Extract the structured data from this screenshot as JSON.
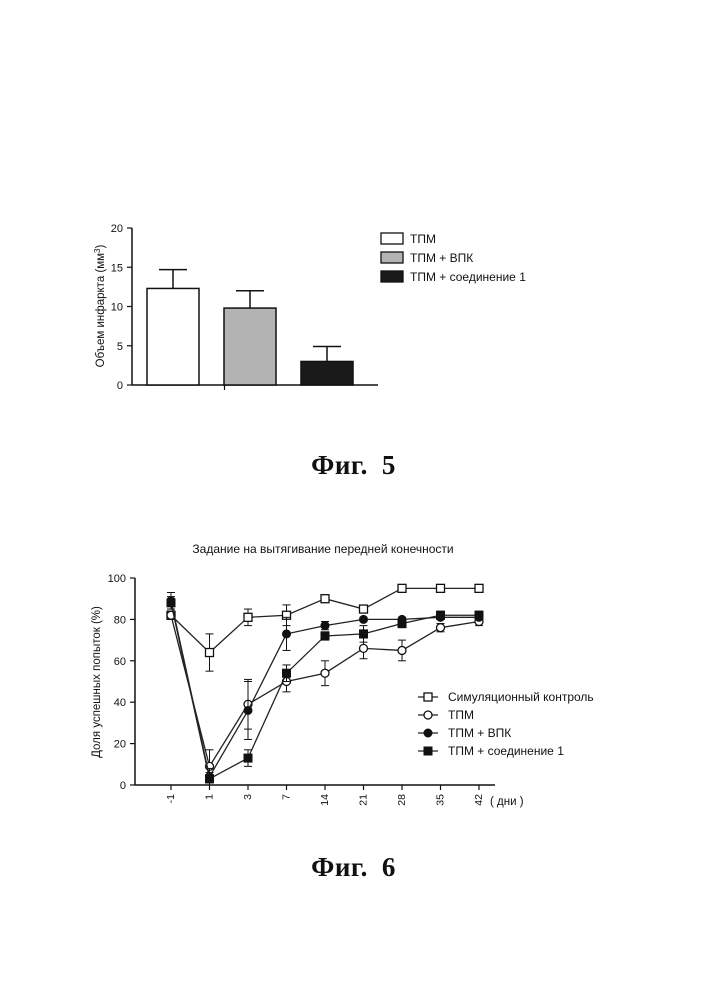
{
  "figures": [
    {
      "label": "Фиг.",
      "number": "5"
    },
    {
      "label": "Фиг.",
      "number": "6"
    }
  ],
  "chart_data": [
    {
      "type": "bar",
      "title": "",
      "xlabel": "",
      "ylabel": "Объем инфаркта (мм",
      "ylabel_superscript": "3",
      "ylabel_suffix": ")",
      "ylim": [
        0,
        20
      ],
      "yticks": [
        "0",
        "5",
        "10",
        "15",
        "20"
      ],
      "categories": [
        "ТПМ",
        "ТПМ + ВПК",
        "ТПМ + соединение 1"
      ],
      "values": [
        12.3,
        9.8,
        3.0
      ],
      "errors": [
        2.4,
        2.2,
        1.9
      ],
      "fills": [
        "#ffffff",
        "#b3b3b3",
        "#1a1a1a"
      ],
      "legend": [
        "ТПМ",
        "ТПМ + ВПК",
        "ТПМ + соединение 1"
      ],
      "legend_position": "right"
    },
    {
      "type": "line",
      "title": "Задание на вытягивание передней конечности",
      "xlabel": "( дни )",
      "ylabel": "Доля успешных попыток (%)",
      "ylim": [
        0,
        100
      ],
      "yticks": [
        "0",
        "20",
        "40",
        "60",
        "80",
        "100"
      ],
      "categories": [
        "-1",
        "1",
        "3",
        "7",
        "14",
        "21",
        "28",
        "35",
        "42"
      ],
      "series": [
        {
          "name": "Симуляционный контроль",
          "marker": "square-open",
          "values": [
            82,
            64,
            81,
            82,
            90,
            85,
            95,
            95,
            95
          ],
          "errors": [
            2,
            9,
            4,
            5,
            1,
            1,
            1,
            1,
            1
          ]
        },
        {
          "name": "ТПМ",
          "marker": "circle-open",
          "values": [
            82,
            9,
            39,
            50,
            54,
            66,
            65,
            76,
            79
          ],
          "errors": [
            2,
            8,
            12,
            5,
            6,
            5,
            5,
            2,
            2
          ]
        },
        {
          "name": "ТПМ + ВПК",
          "marker": "circle-filled",
          "values": [
            89,
            4,
            36,
            73,
            77,
            80,
            80,
            81,
            81
          ],
          "errors": [
            4,
            4,
            14,
            8,
            2,
            1,
            1,
            1,
            1
          ]
        },
        {
          "name": "ТПМ + соединение 1",
          "marker": "square-filled",
          "values": [
            88,
            3,
            13,
            54,
            72,
            73,
            78,
            82,
            82
          ],
          "errors": [
            3,
            3,
            4,
            4,
            2,
            4,
            2,
            2,
            2
          ]
        }
      ],
      "legend_position": "lower-right"
    }
  ]
}
